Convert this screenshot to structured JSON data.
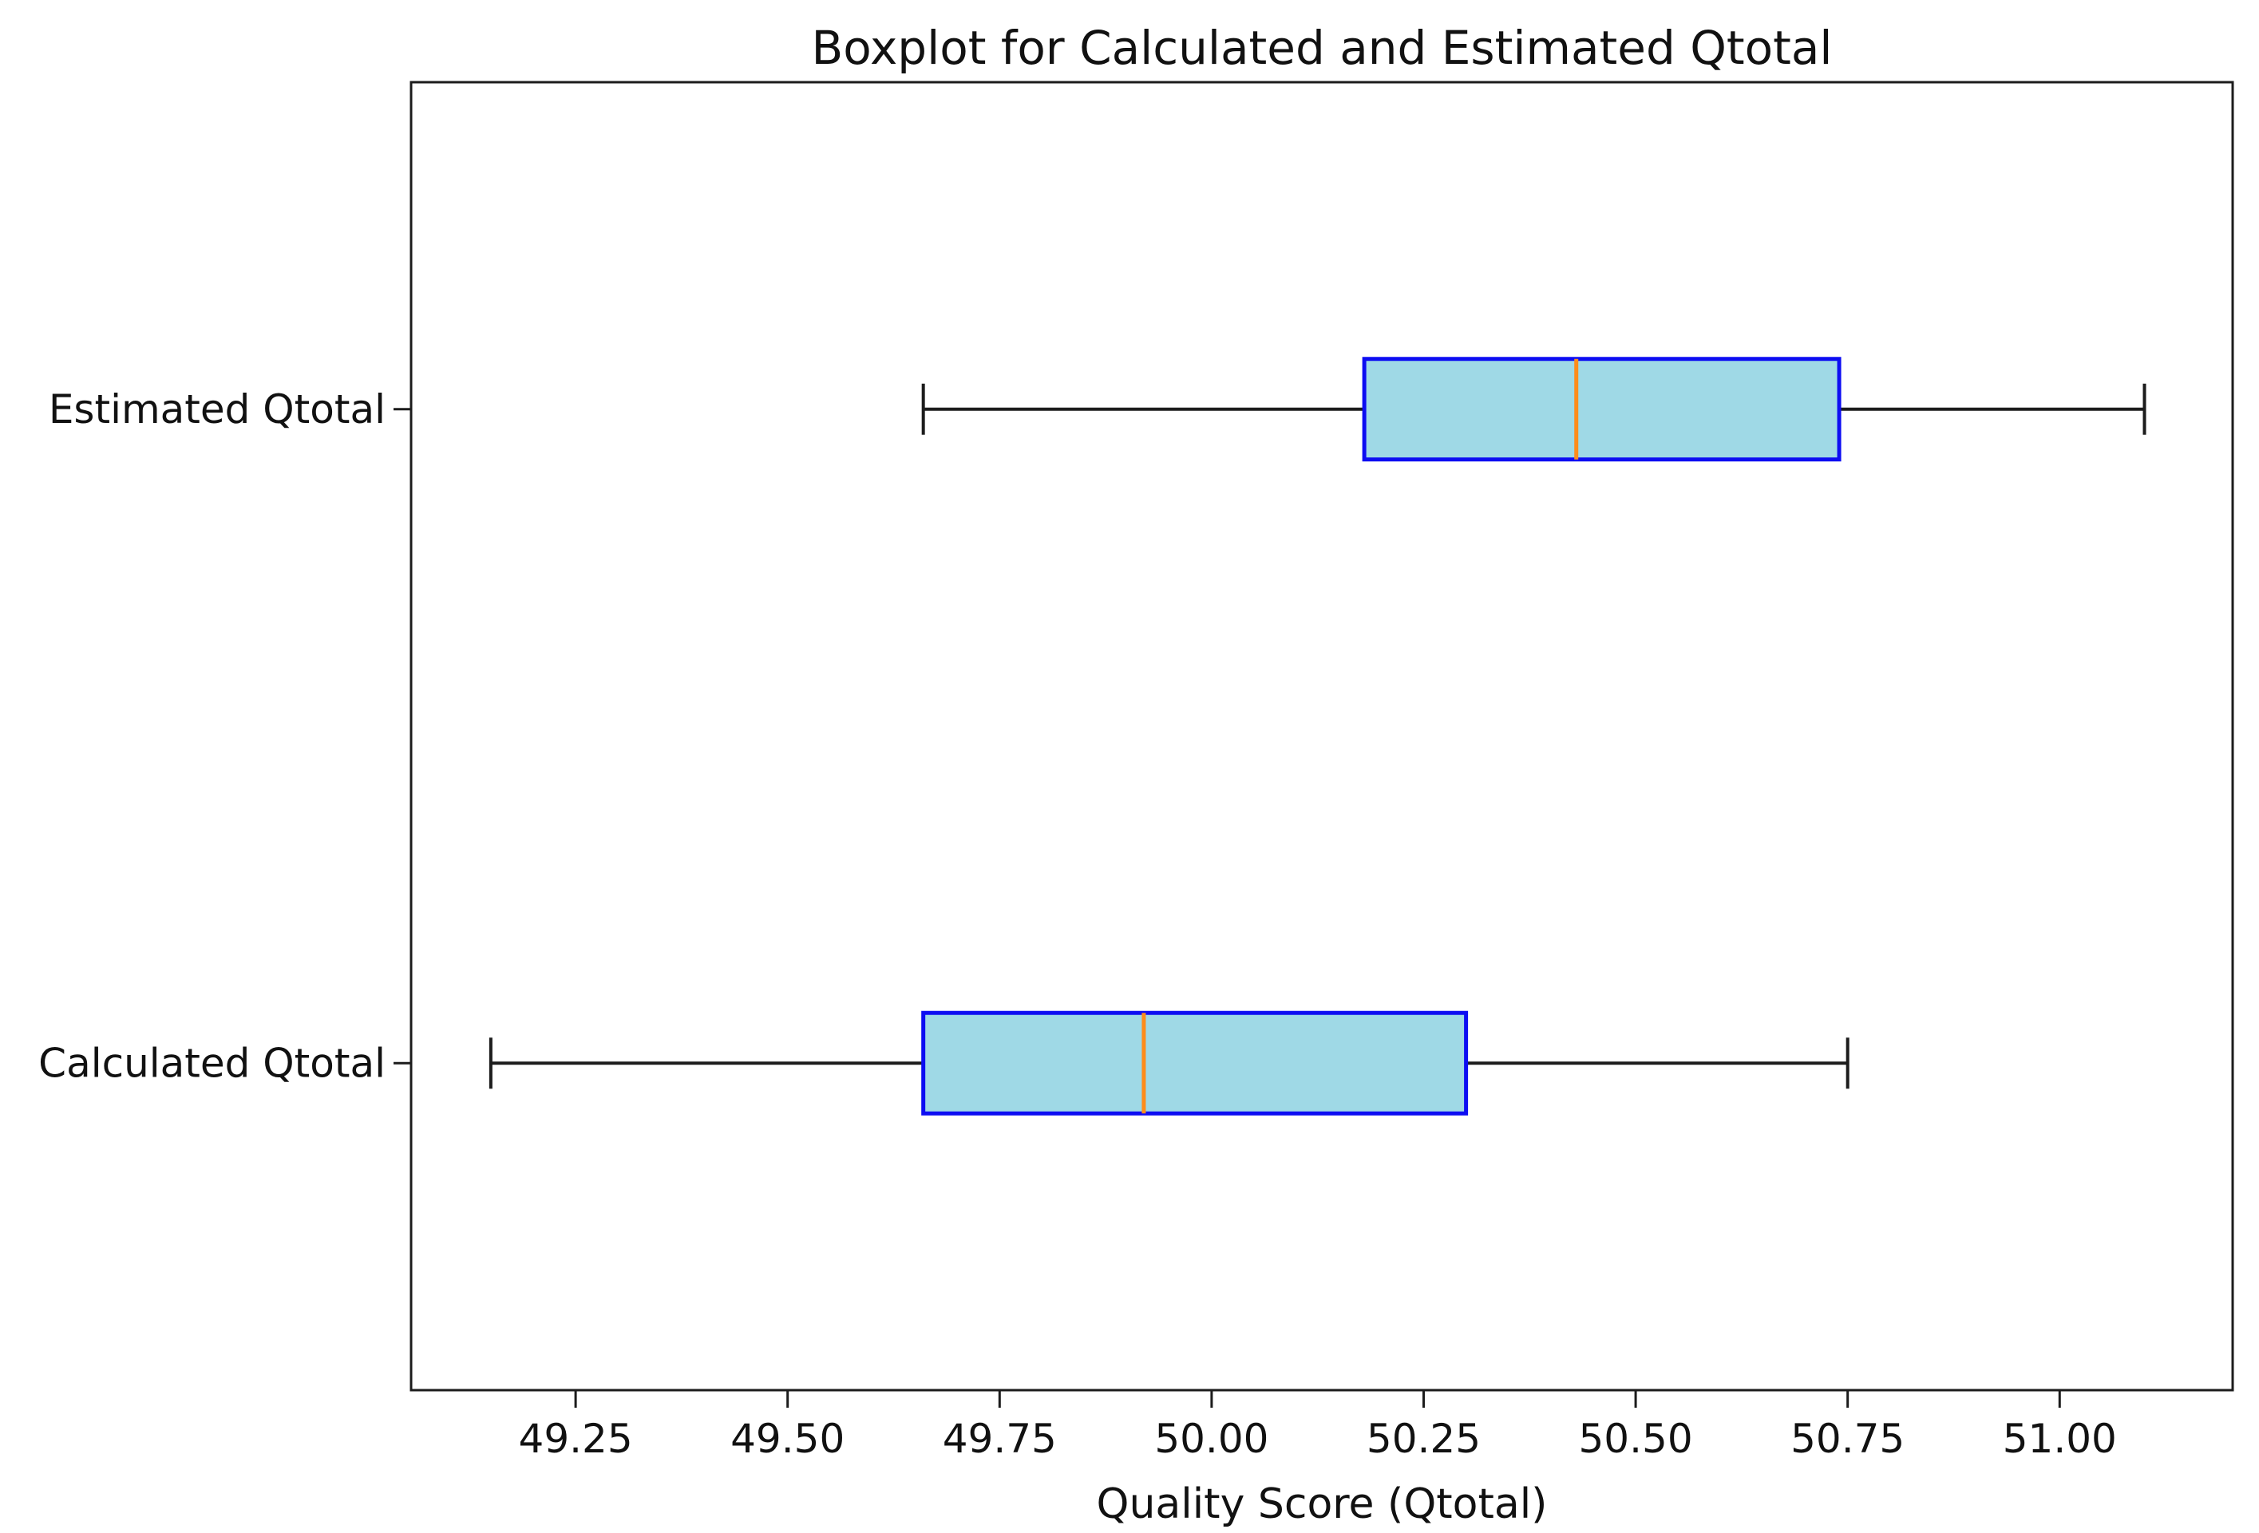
{
  "figure": {
    "background": "#ffffff"
  },
  "chart_data": {
    "type": "boxplot",
    "orientation": "horizontal",
    "title": "Boxplot for Calculated and Estimated Qtotal",
    "xlabel": "Quality Score (Qtotal)",
    "ylabel": "",
    "xlim": [
      49.056,
      51.204
    ],
    "ylim": [
      0.5,
      2.5
    ],
    "grid": false,
    "legend": "none",
    "x_ticks": {
      "values": [
        49.25,
        49.5,
        49.75,
        50.0,
        50.25,
        50.5,
        50.75,
        51.0
      ],
      "labels": [
        "49.25",
        "49.50",
        "49.75",
        "50.00",
        "50.25",
        "50.50",
        "50.75",
        "51.00"
      ]
    },
    "series": [
      {
        "name": "Calculated Qtotal",
        "position": 1,
        "whisker_low": 49.15,
        "q1": 49.66,
        "median": 49.92,
        "q3": 50.3,
        "whisker_high": 50.75
      },
      {
        "name": "Estimated Qtotal",
        "position": 2,
        "whisker_low": 49.66,
        "q1": 50.18,
        "median": 50.43,
        "q3": 50.74,
        "whisker_high": 51.1
      }
    ],
    "colors": {
      "box_fill": "#9fd9e6",
      "box_edge": "#0d0df2",
      "median": "#ff8c1a",
      "whisker": "#1c1c1c",
      "axis": "#1c1c1c",
      "text": "#111111"
    }
  }
}
